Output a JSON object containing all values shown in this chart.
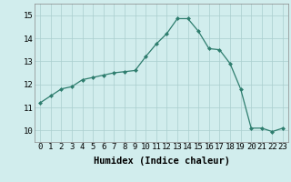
{
  "x": [
    0,
    1,
    2,
    3,
    4,
    5,
    6,
    7,
    8,
    9,
    10,
    11,
    12,
    13,
    14,
    15,
    16,
    17,
    18,
    19,
    20,
    21,
    22,
    23
  ],
  "y": [
    11.2,
    11.5,
    11.8,
    11.9,
    12.2,
    12.3,
    12.4,
    12.5,
    12.55,
    12.6,
    13.2,
    13.75,
    14.2,
    14.85,
    14.85,
    14.3,
    13.55,
    13.5,
    12.9,
    11.8,
    10.1,
    10.1,
    9.95,
    10.1
  ],
  "line_color": "#2e7d6e",
  "marker_color": "#2e7d6e",
  "bg_color": "#d1eded",
  "grid_color": "#aacece",
  "xlabel": "Humidex (Indice chaleur)",
  "ylim_min": 9.5,
  "ylim_max": 15.5,
  "xlim_min": -0.5,
  "xlim_max": 23.5,
  "yticks": [
    10,
    11,
    12,
    13,
    14,
    15
  ],
  "xticks": [
    0,
    1,
    2,
    3,
    4,
    5,
    6,
    7,
    8,
    9,
    10,
    11,
    12,
    13,
    14,
    15,
    16,
    17,
    18,
    19,
    20,
    21,
    22,
    23
  ],
  "xlabel_fontsize": 7.5,
  "tick_fontsize": 6.5
}
